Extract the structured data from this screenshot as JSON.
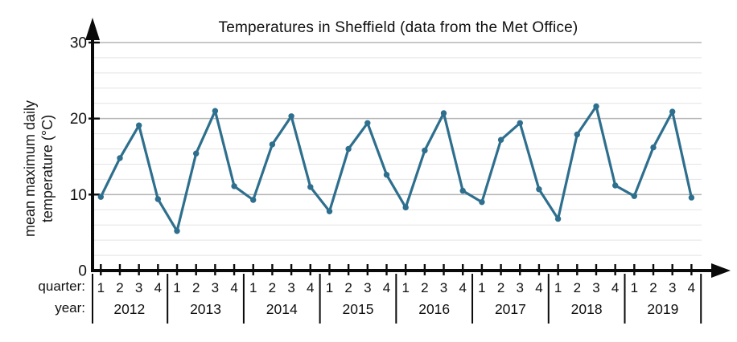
{
  "chart_data": {
    "type": "line",
    "title": "Temperatures in Sheffield (data from the Met Office)",
    "ylabel_lines": [
      "mean maximum daily",
      "temperature (°C)"
    ],
    "row_labels": {
      "quarter": "quarter:",
      "year": "year:"
    },
    "xlabel": "quarter / year",
    "ylabel": "mean maximum daily temperature (°C)",
    "ylim": [
      0,
      30
    ],
    "ytick_major": [
      0,
      10,
      20,
      30
    ],
    "ytick_minor_step": 2,
    "grid": true,
    "legend": "none",
    "quarters": [
      "1",
      "2",
      "3",
      "4"
    ],
    "years": [
      "2012",
      "2013",
      "2014",
      "2015",
      "2016",
      "2017",
      "2018",
      "2019"
    ],
    "series": [
      {
        "name": "mean maximum daily temperature (°C)",
        "values_by_year": {
          "2012": [
            9.7,
            14.8,
            19.1,
            9.4
          ],
          "2013": [
            5.2,
            15.4,
            21.0,
            11.1
          ],
          "2014": [
            9.3,
            16.6,
            20.3,
            11.0
          ],
          "2015": [
            7.8,
            16.0,
            19.4,
            12.6
          ],
          "2016": [
            8.3,
            15.8,
            20.7,
            10.5
          ],
          "2017": [
            9.0,
            17.2,
            19.4,
            10.7
          ],
          "2018": [
            6.8,
            17.9,
            21.6,
            11.2
          ],
          "2019": [
            9.8,
            16.2,
            20.9,
            9.6
          ]
        }
      }
    ],
    "colors": {
      "line": "#2e6f8e",
      "axis": "#0a0a0a",
      "grid_major": "#b5b5b5",
      "grid_minor": "#e3e3e3",
      "text": "#101010"
    }
  }
}
